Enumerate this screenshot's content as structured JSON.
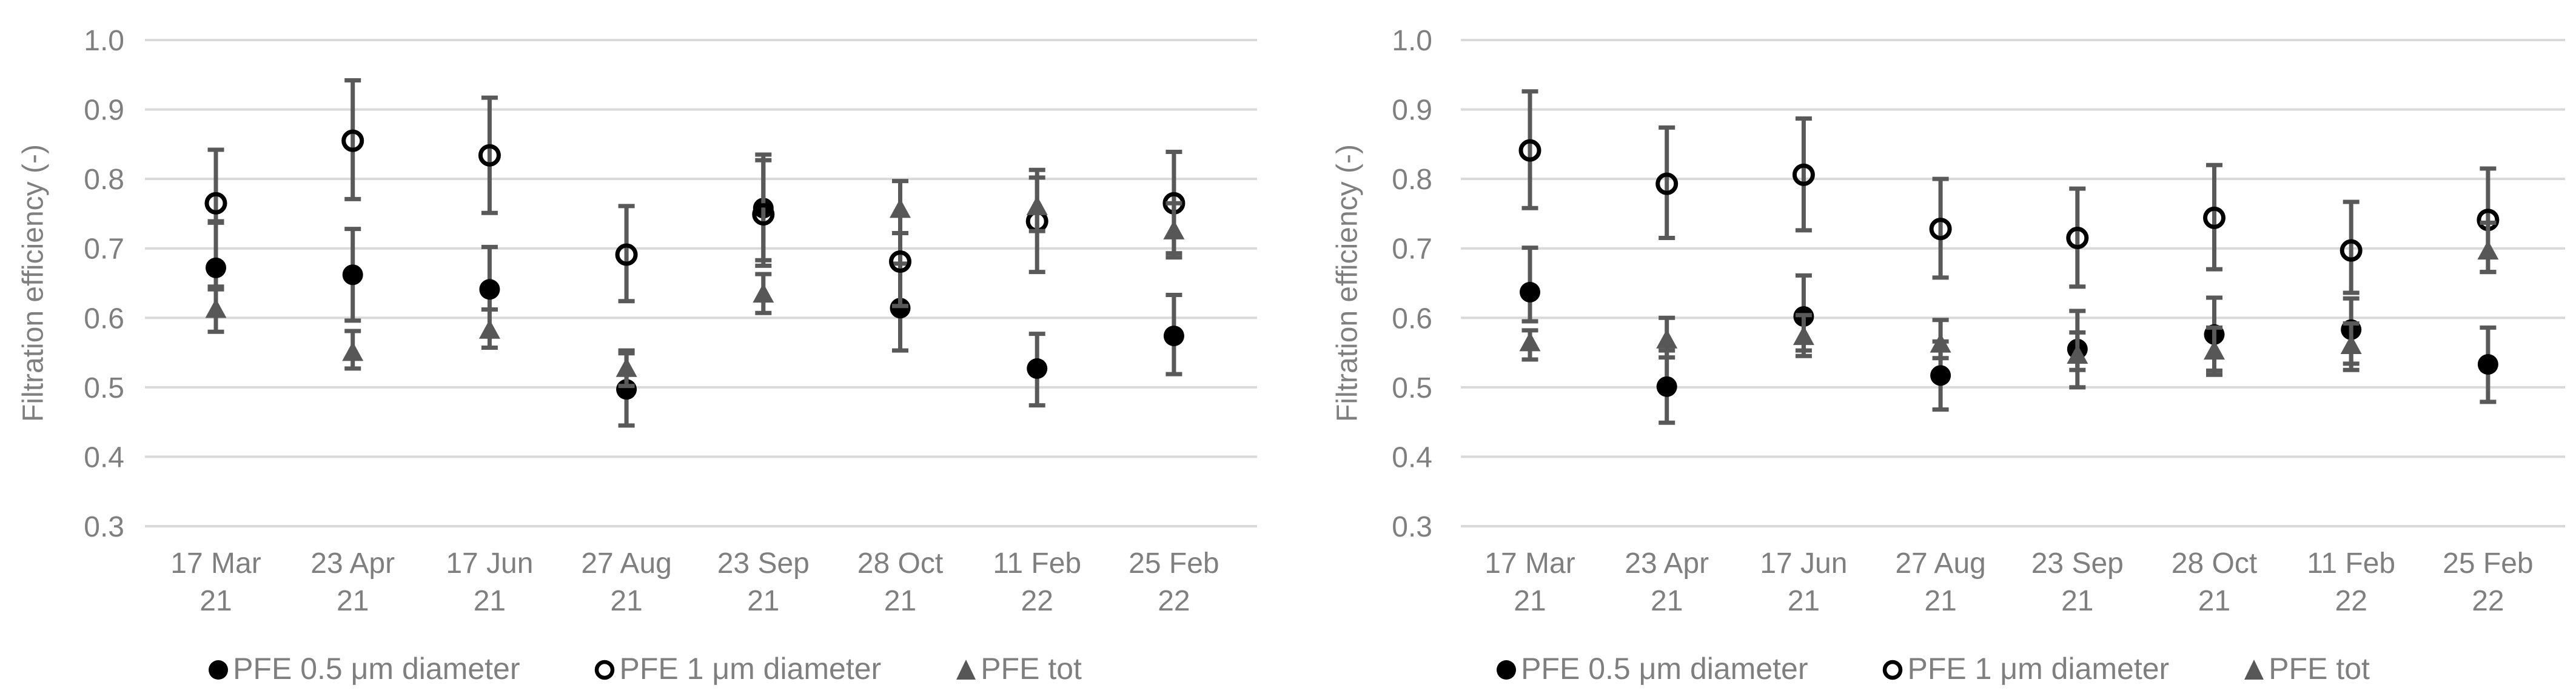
{
  "page": {
    "background": "#ffffff"
  },
  "colors": {
    "gridline": "#d9d9d9",
    "axis_text": "#7f7f7f",
    "error_bar": "#595959",
    "marker_filled": "#000000",
    "marker_open_stroke": "#000000",
    "marker_triangle": "#575757"
  },
  "axis": {
    "y_title": "Filtration efficiency (-)",
    "y_ticks": [
      "1.0",
      "0.9",
      "0.8",
      "0.7",
      "0.6",
      "0.5",
      "0.4",
      "0.3"
    ],
    "y_min": 0.3,
    "y_max": 1.0
  },
  "legend": [
    {
      "marker": "filled-circle",
      "label": "PFE 0.5 μm diameter"
    },
    {
      "marker": "open-circle",
      "label": "PFE 1 μm diameter"
    },
    {
      "marker": "filled-triangle",
      "label": "PFE tot"
    }
  ],
  "chart_data": [
    {
      "type": "scatter",
      "panel": "left",
      "title": "",
      "xlabel": "",
      "ylabel": "Filtration efficiency (-)",
      "ylim": [
        0.3,
        1.0
      ],
      "grid": true,
      "legend_position": "bottom",
      "categories": [
        "17 Mar 21",
        "23 Apr 21",
        "17 Jun 21",
        "27 Aug 21",
        "23 Sep 21",
        "28 Oct 21",
        "11 Feb 22",
        "25 Feb 22"
      ],
      "series": [
        {
          "name": "PFE 0.5 μm diameter",
          "marker": "filled-circle",
          "values": [
            0.672,
            0.662,
            0.641,
            0.497,
            0.758,
            0.614,
            0.527,
            0.574
          ],
          "err_min": [
            0.641,
            0.596,
            0.612,
            0.445,
            0.683,
            0.553,
            0.474,
            0.519
          ],
          "err_max": [
            0.739,
            0.728,
            0.702,
            0.549,
            0.835,
            0.678,
            0.577,
            0.633
          ]
        },
        {
          "name": "PFE 1 μm diameter",
          "marker": "open-circle",
          "values": [
            0.765,
            0.855,
            0.834,
            0.691,
            0.749,
            0.681,
            0.739,
            0.765
          ],
          "err_min": [
            0.737,
            0.771,
            0.751,
            0.624,
            0.675,
            0.617,
            0.666,
            0.693
          ],
          "err_max": [
            0.842,
            0.942,
            0.917,
            0.761,
            0.827,
            0.722,
            0.802,
            0.839
          ]
        },
        {
          "name": "PFE tot",
          "marker": "filled-triangle",
          "values": [
            0.613,
            0.551,
            0.583,
            0.528,
            0.635,
            0.757,
            0.761,
            0.726
          ],
          "err_min": [
            0.58,
            0.527,
            0.557,
            0.502,
            0.607,
            0.722,
            0.725,
            0.687
          ],
          "err_max": [
            0.645,
            0.581,
            0.612,
            0.553,
            0.663,
            0.797,
            0.813,
            0.765
          ]
        }
      ]
    },
    {
      "type": "scatter",
      "panel": "right",
      "title": "",
      "xlabel": "",
      "ylabel": "Filtration efficiency (-)",
      "ylim": [
        0.3,
        1.0
      ],
      "grid": true,
      "legend_position": "bottom",
      "categories": [
        "17 Mar 21",
        "23 Apr 21",
        "17 Jun 21",
        "27 Aug 21",
        "23 Sep 21",
        "28 Oct 21",
        "11 Feb 22",
        "25 Feb 22"
      ],
      "series": [
        {
          "name": "PFE 0.5 μm diameter",
          "marker": "filled-circle",
          "values": [
            0.637,
            0.501,
            0.602,
            0.517,
            0.555,
            0.576,
            0.583,
            0.533
          ],
          "err_min": [
            0.595,
            0.449,
            0.545,
            0.468,
            0.5,
            0.524,
            0.534,
            0.479
          ],
          "err_max": [
            0.701,
            0.553,
            0.661,
            0.566,
            0.61,
            0.629,
            0.628,
            0.586
          ]
        },
        {
          "name": "PFE 1 μm diameter",
          "marker": "open-circle",
          "values": [
            0.841,
            0.793,
            0.806,
            0.728,
            0.715,
            0.744,
            0.697,
            0.741
          ],
          "err_min": [
            0.758,
            0.715,
            0.726,
            0.658,
            0.645,
            0.67,
            0.636,
            0.666
          ],
          "err_max": [
            0.926,
            0.874,
            0.887,
            0.8,
            0.786,
            0.82,
            0.767,
            0.815
          ]
        },
        {
          "name": "PFE tot",
          "marker": "filled-triangle",
          "values": [
            0.565,
            0.569,
            0.574,
            0.563,
            0.547,
            0.553,
            0.561,
            0.697
          ],
          "err_min": [
            0.54,
            0.543,
            0.553,
            0.542,
            0.525,
            0.518,
            0.525,
            0.666
          ],
          "err_max": [
            0.582,
            0.6,
            0.604,
            0.597,
            0.579,
            0.586,
            0.592,
            0.737
          ]
        }
      ]
    }
  ]
}
